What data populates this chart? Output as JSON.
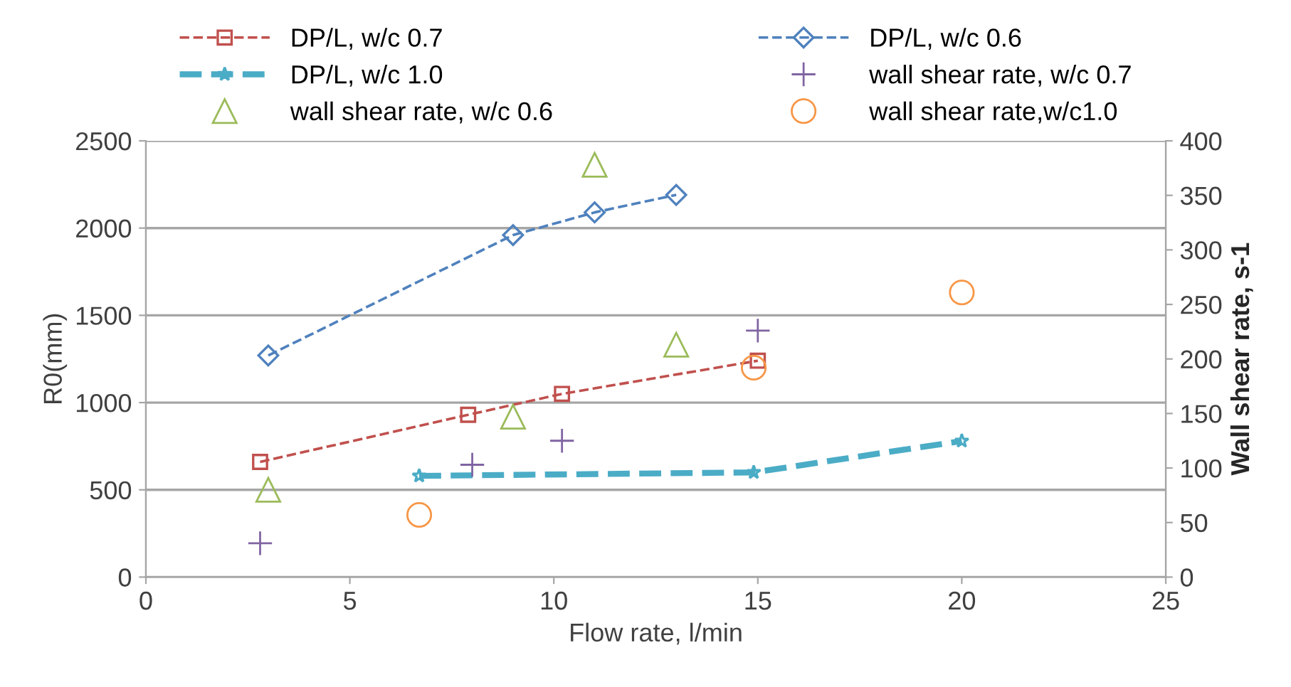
{
  "chart_data": {
    "type": "line",
    "xlabel": "Flow rate, l/min",
    "ylabel": "R0(mm)",
    "y2label": "Wall shear rate, s-1",
    "xlim": [
      0,
      25
    ],
    "xticks": [
      0,
      5,
      10,
      15,
      20,
      25
    ],
    "ylim": [
      0,
      2500
    ],
    "yticks": [
      0,
      500,
      1000,
      1500,
      2000,
      2500
    ],
    "y2lim": [
      0,
      400
    ],
    "y2ticks": [
      0,
      50,
      100,
      150,
      200,
      250,
      300,
      350,
      400
    ],
    "grid": "y",
    "legend": "top",
    "series": [
      {
        "name": "DP/L, w/c 0.7",
        "color": "#c0504d",
        "marker": "square",
        "line_style": "dashed",
        "x": [
          2.8,
          7.9,
          10.2,
          15
        ],
        "values": [
          660,
          930,
          1050,
          1240
        ]
      },
      {
        "name": "DP/L, w/c 0.6",
        "color": "#4f81bd",
        "marker": "diamond",
        "line_style": "dashed",
        "x": [
          3,
          9,
          11,
          13
        ],
        "values": [
          1270,
          1960,
          2090,
          2190
        ]
      },
      {
        "name": "DP/L, w/c 1.0",
        "color": "#4bacc6",
        "marker": "star",
        "line_style": "dashed",
        "x": [
          6.7,
          14.9,
          20
        ],
        "values": [
          580,
          600,
          780
        ]
      },
      {
        "name": "wall shear rate, w/c 0.7",
        "type": "scatter",
        "axis": "y2",
        "color": "#8064a2",
        "marker": "cross",
        "x": [
          2.8,
          8,
          10.2,
          15
        ],
        "values": [
          31,
          103,
          125,
          226
        ]
      },
      {
        "name": "wall shear rate, w/c 0.6",
        "type": "scatter",
        "axis": "y2",
        "color": "#9bbb59",
        "marker": "triangle",
        "x": [
          3,
          9,
          11,
          13
        ],
        "values": [
          80,
          147,
          378,
          213
        ]
      },
      {
        "name": "wall shear rate,w/c1.0",
        "type": "scatter",
        "axis": "y2",
        "color": "#f79646",
        "marker": "circle",
        "x": [
          6.7,
          14.9,
          20
        ],
        "values": [
          57,
          192,
          261
        ]
      }
    ]
  }
}
